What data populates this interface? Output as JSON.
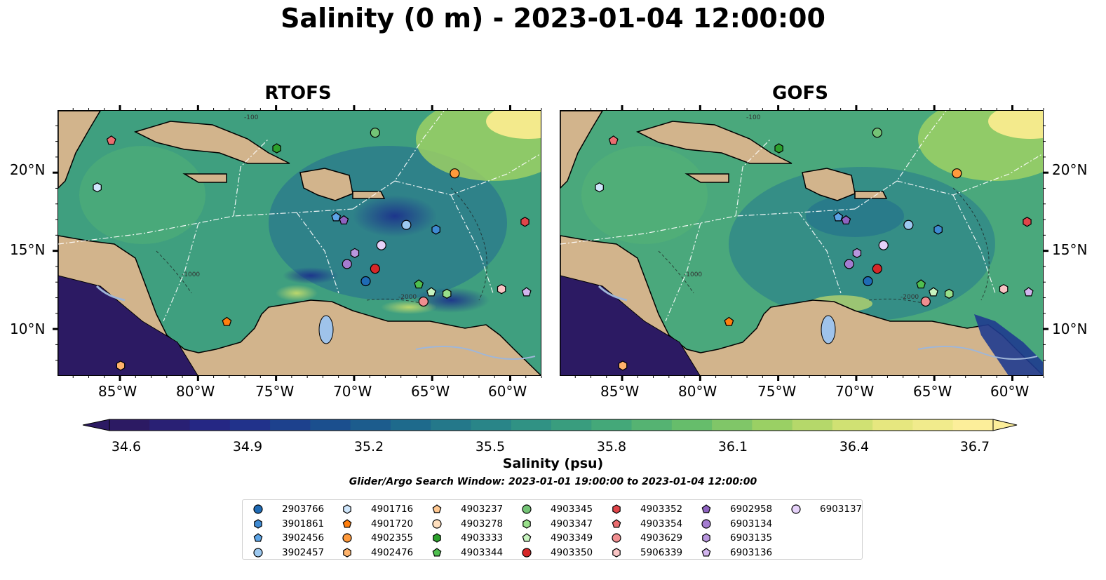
{
  "title": "Salinity (0 m) - 2023-01-04 12:00:00",
  "panels": [
    {
      "title": "RTOFS"
    },
    {
      "title": "GOFS"
    }
  ],
  "lat_labels": [
    "20°N",
    "15°N",
    "10°N"
  ],
  "lon_labels": [
    "85°W",
    "80°W",
    "75°W",
    "70°W",
    "65°W",
    "60°W"
  ],
  "map_extent": {
    "lon": [
      -89,
      -58
    ],
    "lat": [
      7,
      24
    ]
  },
  "contour_labels": [
    "-100",
    "-1000",
    "-2000"
  ],
  "colorbar": {
    "label": "Salinity (psu)",
    "ticks": [
      "34.6",
      "34.9",
      "35.2",
      "35.5",
      "35.8",
      "36.1",
      "36.4",
      "36.7"
    ],
    "range": [
      34.6,
      36.7
    ],
    "extend": "both"
  },
  "search_window": "Glider/Argo Search Window: 2023-01-01 19:00:00 to 2023-01-04 12:00:00",
  "colors": {
    "land": "#d2b48c",
    "cmap": [
      "#2c1a63",
      "#24298a",
      "#1a4a8e",
      "#1e6a8c",
      "#2b8a87",
      "#3ea57b",
      "#66bd6b",
      "#a3d363",
      "#e2e67a",
      "#fcee9a"
    ]
  },
  "legend": [
    {
      "id": "2903766",
      "marker": "circle",
      "color": "#1f6bb5"
    },
    {
      "id": "3901861",
      "marker": "hexagon",
      "color": "#3f8ad2"
    },
    {
      "id": "3902456",
      "marker": "pentagon",
      "color": "#5ca4e6"
    },
    {
      "id": "3902457",
      "marker": "circle",
      "color": "#9cc8ef"
    },
    {
      "id": "4901716",
      "marker": "hexagon",
      "color": "#cfe6fb"
    },
    {
      "id": "4901720",
      "marker": "pentagon",
      "color": "#ff7f0e"
    },
    {
      "id": "4902355",
      "marker": "circle",
      "color": "#ff9a3c"
    },
    {
      "id": "4902476",
      "marker": "hexagon",
      "color": "#ffb36b"
    },
    {
      "id": "4903237",
      "marker": "pentagon",
      "color": "#ffc891"
    },
    {
      "id": "4903278",
      "marker": "circle",
      "color": "#ffdfbe"
    },
    {
      "id": "4903333",
      "marker": "hexagon",
      "color": "#2ca02c"
    },
    {
      "id": "4903344",
      "marker": "pentagon",
      "color": "#4fbf4f"
    },
    {
      "id": "4903345",
      "marker": "circle",
      "color": "#74c476"
    },
    {
      "id": "4903347",
      "marker": "hexagon",
      "color": "#98df8a"
    },
    {
      "id": "4903349",
      "marker": "pentagon",
      "color": "#c7f3bf"
    },
    {
      "id": "4903350",
      "marker": "circle",
      "color": "#d62728"
    },
    {
      "id": "4903352",
      "marker": "hexagon",
      "color": "#e0454a"
    },
    {
      "id": "4903354",
      "marker": "pentagon",
      "color": "#eb6d70"
    },
    {
      "id": "4903629",
      "marker": "circle",
      "color": "#f08e90"
    },
    {
      "id": "5906339",
      "marker": "hexagon",
      "color": "#f9c4c4"
    },
    {
      "id": "6902958",
      "marker": "pentagon",
      "color": "#8e63c0"
    },
    {
      "id": "6903134",
      "marker": "circle",
      "color": "#a47cd0"
    },
    {
      "id": "6903135",
      "marker": "hexagon",
      "color": "#b896de"
    },
    {
      "id": "6903136",
      "marker": "pentagon",
      "color": "#d2b5ee"
    },
    {
      "id": "6903137",
      "marker": "circle",
      "color": "#e6d2fa"
    }
  ],
  "floats": [
    {
      "id": "2903766",
      "lon": -69.3,
      "lat": 13.1
    },
    {
      "id": "3901861",
      "lon": -64.8,
      "lat": 16.4
    },
    {
      "id": "3902456",
      "lon": -71.2,
      "lat": 17.2
    },
    {
      "id": "3902457",
      "lon": -66.7,
      "lat": 16.7
    },
    {
      "id": "4901716",
      "lon": -86.5,
      "lat": 19.1
    },
    {
      "id": "4901720",
      "lon": -78.2,
      "lat": 10.5
    },
    {
      "id": "4902355",
      "lon": -63.6,
      "lat": 20.0
    },
    {
      "id": "4902476",
      "lon": -85.0,
      "lat": 7.7
    },
    {
      "id": "4903333",
      "lon": -75.0,
      "lat": 21.6
    },
    {
      "id": "4903344",
      "lon": -65.9,
      "lat": 12.9
    },
    {
      "id": "4903345",
      "lon": -68.7,
      "lat": 22.6
    },
    {
      "id": "4903347",
      "lon": -64.1,
      "lat": 12.3
    },
    {
      "id": "4903349",
      "lon": -65.1,
      "lat": 12.4
    },
    {
      "id": "4903350",
      "lon": -68.7,
      "lat": 13.9
    },
    {
      "id": "4903352",
      "lon": -59.1,
      "lat": 16.9
    },
    {
      "id": "4903354",
      "lon": -85.6,
      "lat": 22.1
    },
    {
      "id": "4903629",
      "lon": -65.6,
      "lat": 11.8
    },
    {
      "id": "5906339",
      "lon": -60.6,
      "lat": 12.6
    },
    {
      "id": "6902958",
      "lon": -70.7,
      "lat": 17.0
    },
    {
      "id": "6903134",
      "lon": -70.5,
      "lat": 14.2
    },
    {
      "id": "6903135",
      "lon": -70.0,
      "lat": 14.9
    },
    {
      "id": "6903136",
      "lon": -59.0,
      "lat": 12.4
    },
    {
      "id": "6903137",
      "lon": -68.3,
      "lat": 15.4
    }
  ]
}
